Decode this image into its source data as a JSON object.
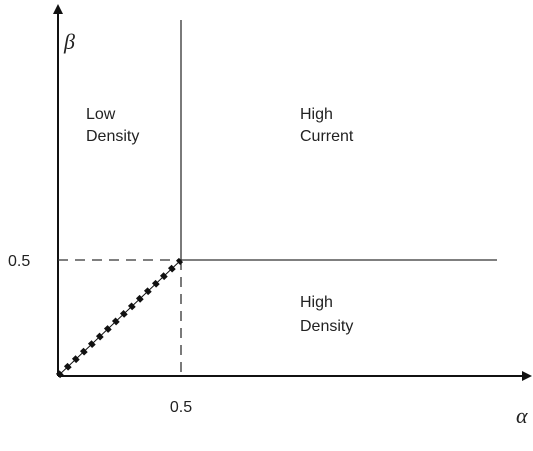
{
  "axes": {
    "x_label": "α",
    "y_label": "β"
  },
  "ticks": {
    "x": "0.5",
    "y": "0.5"
  },
  "regions": [
    {
      "lines": [
        "Low",
        "Density"
      ]
    },
    {
      "lines": [
        "High",
        "Current"
      ]
    },
    {
      "lines": [
        "High",
        "Density"
      ]
    }
  ]
}
